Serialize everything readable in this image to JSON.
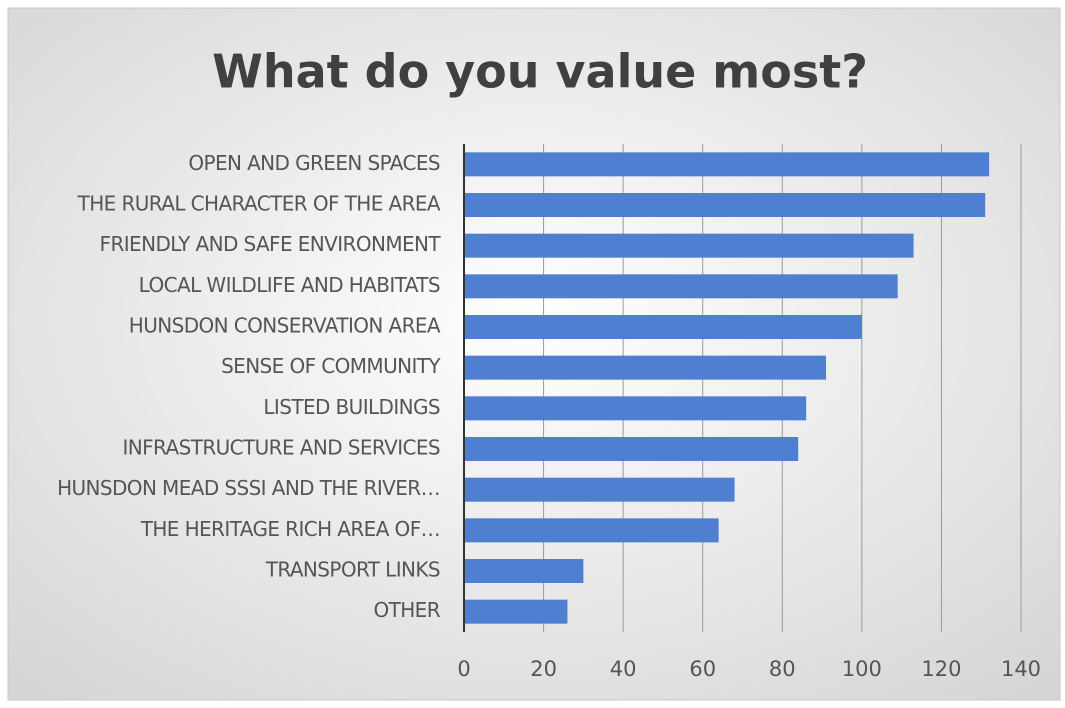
{
  "chart_data": {
    "type": "bar",
    "orientation": "horizontal",
    "title": "What do you value most?",
    "categories": [
      "OPEN AND GREEN SPACES",
      "THE RURAL CHARACTER OF THE AREA",
      "FRIENDLY AND SAFE ENVIRONMENT",
      "LOCAL WILDLIFE AND HABITATS",
      "HUNSDON CONSERVATION AREA",
      "SENSE OF COMMUNITY",
      "LISTED BUILDINGS",
      "INFRASTRUCTURE AND SERVICES",
      "HUNSDON MEAD SSSI AND THE RIVER…",
      "THE HERITAGE RICH AREA OF…",
      "TRANSPORT LINKS",
      "OTHER"
    ],
    "values": [
      132,
      131,
      113,
      109,
      100,
      91,
      86,
      84,
      68,
      64,
      30,
      26
    ],
    "color": "#4f7fd0",
    "xlim": [
      0,
      140
    ],
    "xticks": [
      0,
      20,
      40,
      60,
      80,
      100,
      120,
      140
    ],
    "grid": true
  }
}
